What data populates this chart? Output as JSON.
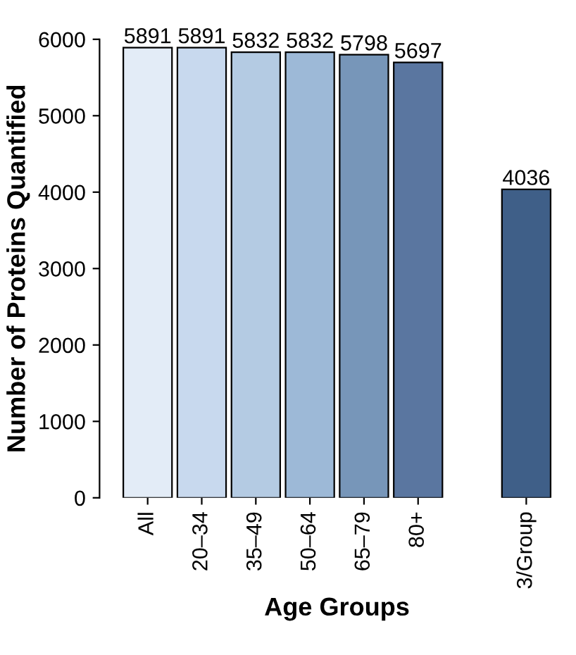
{
  "chart_data": {
    "type": "bar",
    "xlabel": "Age Groups",
    "ylabel": "Number of Proteins Quantified",
    "categories": [
      "All",
      "20–34",
      "35–49",
      "50–64",
      "65–79",
      "80+",
      null,
      "3/Group"
    ],
    "values": [
      5891,
      5891,
      5832,
      5832,
      5798,
      5697,
      null,
      4036
    ],
    "colors": [
      "#e3ecf7",
      "#c8d9ee",
      "#b4cbe3",
      "#9db9d7",
      "#7796b9",
      "#5a76a0",
      "#ffffff",
      "#3f5f88"
    ],
    "ylim": [
      0,
      6000
    ],
    "yticks": [
      0,
      1000,
      2000,
      3000,
      4000,
      5000,
      6000
    ],
    "data_labels": true,
    "grid": false,
    "legend": false
  }
}
